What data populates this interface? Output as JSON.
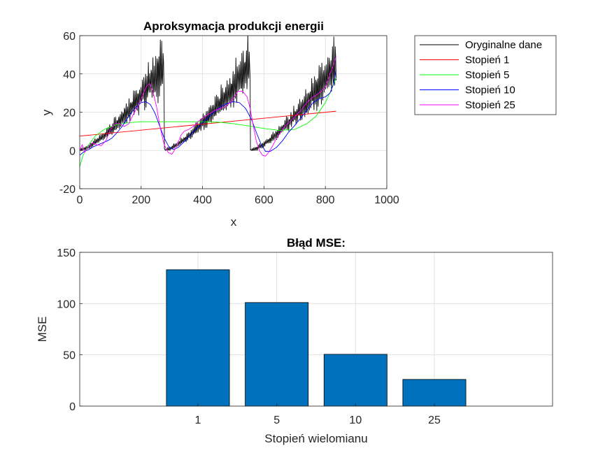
{
  "chart_data": [
    {
      "type": "line",
      "title": "Aproksymacja produkcji energii",
      "xlabel": "x",
      "ylabel": "y",
      "xlim": [
        0,
        1000
      ],
      "ylim": [
        -20,
        60
      ],
      "xticks": [
        0,
        200,
        400,
        600,
        800,
        1000
      ],
      "yticks": [
        -20,
        0,
        20,
        40,
        60
      ],
      "grid": true,
      "legend_position": "outside-right",
      "series": [
        {
          "name": "Oryginalne dane",
          "color": "#000000",
          "kind": "sawtooth-data",
          "x": [
            0,
            275,
            276,
            555,
            556,
            835
          ],
          "y": [
            0,
            45,
            0,
            45,
            0,
            45
          ]
        },
        {
          "name": "Stopień 1",
          "color": "#ff0000",
          "x": [
            0,
            835
          ],
          "y": [
            7.5,
            20.5
          ]
        },
        {
          "name": "Stopień 5",
          "color": "#00ff00",
          "x": [
            0,
            10,
            25,
            50,
            80,
            120,
            160,
            200,
            250,
            300,
            350,
            400,
            450,
            500,
            550,
            600,
            650,
            700,
            740,
            770,
            800,
            820,
            835
          ],
          "y": [
            -8.5,
            -3,
            2,
            7.5,
            11,
            13.5,
            14.5,
            15,
            15,
            15,
            15,
            15,
            14.8,
            14,
            12.8,
            11.5,
            10.5,
            11,
            14,
            18,
            25,
            32,
            38
          ]
        },
        {
          "name": "Stopień 10",
          "color": "#0000ff",
          "x": [
            0,
            15,
            30,
            45,
            60,
            75,
            90,
            105,
            120,
            140,
            160,
            180,
            200,
            215,
            230,
            245,
            260,
            275,
            290,
            305,
            320,
            340,
            360,
            380,
            400,
            420,
            440,
            460,
            480,
            500,
            520,
            540,
            560,
            575,
            590,
            605,
            620,
            640,
            660,
            680,
            700,
            720,
            740,
            760,
            780,
            800,
            815,
            825,
            835
          ],
          "y": [
            -2.5,
            -0.5,
            0.5,
            2,
            3,
            4,
            5,
            6.5,
            9,
            13,
            18,
            22,
            25,
            25.5,
            24,
            19.5,
            13,
            6.5,
            2,
            0.5,
            1.5,
            4.5,
            8,
            11.5,
            14.5,
            17.5,
            20.5,
            23,
            24.5,
            25.5,
            25,
            22,
            16,
            9.5,
            3.5,
            -0.5,
            -0.5,
            1.5,
            5,
            9.5,
            13,
            17,
            21,
            25,
            27,
            28,
            30,
            34,
            42
          ]
        },
        {
          "name": "Stopień 25",
          "color": "#ff00ff",
          "x": [
            0,
            8,
            16,
            25,
            40,
            55,
            70,
            85,
            100,
            115,
            130,
            145,
            160,
            175,
            190,
            200,
            210,
            220,
            228,
            238,
            250,
            262,
            275,
            288,
            300,
            310,
            320,
            330,
            340,
            355,
            370,
            385,
            400,
            420,
            440,
            460,
            480,
            500,
            515,
            530,
            545,
            555,
            565,
            575,
            585,
            595,
            605,
            615,
            625,
            640,
            660,
            680,
            700,
            720,
            740,
            760,
            780,
            800,
            815,
            825,
            835
          ],
          "y": [
            0,
            3,
            -1,
            1,
            4,
            3,
            2.5,
            5,
            11,
            14,
            14,
            12.5,
            14,
            19,
            23,
            27,
            31,
            34,
            35,
            31,
            23,
            12,
            3,
            -1,
            -2,
            0.5,
            4,
            8,
            10,
            11,
            12.5,
            15,
            17,
            19,
            21,
            22,
            23.5,
            27,
            31,
            31,
            28,
            22,
            13,
            5,
            0,
            -2.5,
            -3,
            -1,
            1.5,
            6,
            11,
            14.5,
            17.5,
            21,
            25,
            28,
            30,
            33,
            40,
            44,
            49
          ]
        }
      ]
    },
    {
      "type": "bar",
      "title": "Błąd MSE:",
      "xlabel": "Stopień wielomianu",
      "ylabel": "MSE",
      "categories": [
        "1",
        "5",
        "10",
        "25"
      ],
      "values": [
        133,
        101,
        50.5,
        26
      ],
      "ylim": [
        0,
        150
      ],
      "yticks": [
        0,
        50,
        100,
        150
      ],
      "grid": true,
      "bar_color": "#0072bd"
    }
  ]
}
